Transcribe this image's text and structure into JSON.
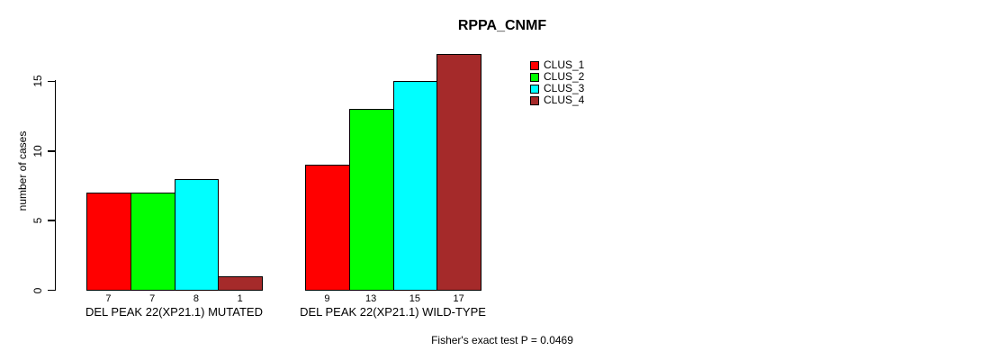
{
  "title": "RPPA_CNMF",
  "y_axis": {
    "label": "number of cases",
    "ticks": [
      0,
      5,
      10,
      15
    ]
  },
  "footer": "Fisher's exact test P = 0.0469",
  "legend": {
    "items": [
      {
        "label": "CLUS_1",
        "color": "#ff0000"
      },
      {
        "label": "CLUS_2",
        "color": "#00ff00"
      },
      {
        "label": "CLUS_3",
        "color": "#00ffff"
      },
      {
        "label": "CLUS_4",
        "color": "#a52a2a"
      }
    ]
  },
  "chart_data": {
    "type": "bar",
    "title": "RPPA_CNMF",
    "ylabel": "number of cases",
    "ylim": [
      0,
      17
    ],
    "yticks": [
      0,
      5,
      10,
      15
    ],
    "grid": false,
    "legend_position": "top-right-inside",
    "categories": [
      "DEL PEAK 22(XP21.1) MUTATED",
      "DEL PEAK 22(XP21.1) WILD-TYPE"
    ],
    "series": [
      {
        "name": "CLUS_1",
        "color": "#ff0000",
        "values": [
          7,
          9
        ]
      },
      {
        "name": "CLUS_2",
        "color": "#00ff00",
        "values": [
          7,
          13
        ]
      },
      {
        "name": "CLUS_3",
        "color": "#00ffff",
        "values": [
          8,
          15
        ]
      },
      {
        "name": "CLUS_4",
        "color": "#a52a2a",
        "values": [
          1,
          17
        ]
      }
    ],
    "bar_value_labels": [
      [
        7,
        7,
        8,
        1
      ],
      [
        9,
        13,
        15,
        17
      ]
    ],
    "annotation": "Fisher's exact test P = 0.0469"
  }
}
